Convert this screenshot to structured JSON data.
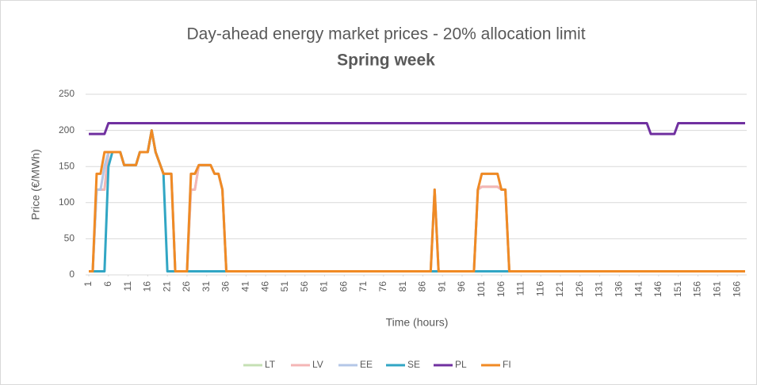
{
  "chart_data": {
    "type": "line",
    "title": "Day-ahead energy market prices - 20% allocation limit",
    "subtitle": "Spring week",
    "x_label": "Time (hours)",
    "y_label": "Price (€/MWh)",
    "x": [
      1,
      2,
      3,
      4,
      5,
      6,
      7,
      8,
      9,
      10,
      11,
      12,
      13,
      14,
      15,
      16,
      17,
      18,
      19,
      20,
      21,
      22,
      23,
      24,
      25,
      26,
      27,
      28,
      29,
      30,
      31,
      32,
      33,
      34,
      35,
      36,
      37,
      38,
      39,
      40,
      41,
      42,
      43,
      44,
      45,
      46,
      47,
      48,
      49,
      50,
      51,
      52,
      53,
      54,
      55,
      56,
      57,
      58,
      59,
      60,
      61,
      62,
      63,
      64,
      65,
      66,
      67,
      68,
      69,
      70,
      71,
      72,
      73,
      74,
      75,
      76,
      77,
      78,
      79,
      80,
      81,
      82,
      83,
      84,
      85,
      86,
      87,
      88,
      89,
      90,
      91,
      92,
      93,
      94,
      95,
      96,
      97,
      98,
      99,
      100,
      101,
      102,
      103,
      104,
      105,
      106,
      107,
      108,
      109,
      110,
      111,
      112,
      113,
      114,
      115,
      116,
      117,
      118,
      119,
      120,
      121,
      122,
      123,
      124,
      125,
      126,
      127,
      128,
      129,
      130,
      131,
      132,
      133,
      134,
      135,
      136,
      137,
      138,
      139,
      140,
      141,
      142,
      143,
      144,
      145,
      146,
      147,
      148,
      149,
      150,
      151,
      152,
      153,
      154,
      155,
      156,
      157,
      158,
      159,
      160,
      161,
      162,
      163,
      164,
      165,
      166,
      167,
      168
    ],
    "xlim": [
      1,
      168
    ],
    "xticks": [
      1,
      6,
      11,
      16,
      21,
      26,
      31,
      36,
      41,
      46,
      51,
      56,
      61,
      66,
      71,
      76,
      81,
      86,
      91,
      96,
      101,
      106,
      111,
      116,
      121,
      126,
      131,
      136,
      141,
      146,
      151,
      156,
      161,
      166
    ],
    "ylim": [
      0,
      250
    ],
    "yticks": [
      0,
      50,
      100,
      150,
      200,
      250
    ],
    "grid": true,
    "legend": "bottom",
    "series": [
      {
        "name": "LT",
        "color": "#c5e0b4",
        "values": [
          5,
          5,
          118,
          118,
          118,
          170,
          170,
          170,
          170,
          152,
          152,
          152,
          152,
          170,
          170,
          170,
          200,
          170,
          155,
          140,
          140,
          140,
          5,
          5,
          5,
          5,
          118,
          118,
          152,
          152,
          152,
          152,
          140,
          140,
          118,
          5,
          5,
          5,
          5,
          5,
          5,
          5,
          5,
          5,
          5,
          5,
          5,
          5,
          5,
          5,
          5,
          5,
          5,
          5,
          5,
          5,
          5,
          5,
          5,
          5,
          5,
          5,
          5,
          5,
          5,
          5,
          5,
          5,
          5,
          5,
          5,
          5,
          5,
          5,
          5,
          5,
          5,
          5,
          5,
          5,
          5,
          5,
          5,
          5,
          5,
          5,
          5,
          5,
          118,
          5,
          5,
          5,
          5,
          5,
          5,
          5,
          5,
          5,
          5,
          118,
          122,
          122,
          122,
          122,
          122,
          118,
          118,
          5,
          5,
          5,
          5,
          5,
          5,
          5,
          5,
          5,
          5,
          5,
          5,
          5,
          5,
          5,
          5,
          5,
          5,
          5,
          5,
          5,
          5,
          5,
          5,
          5,
          5,
          5,
          5,
          5,
          5,
          5,
          5,
          5,
          5,
          5,
          5,
          5,
          5,
          5,
          5,
          5,
          5,
          5,
          5,
          5,
          5,
          5,
          5,
          5,
          5,
          5,
          5,
          5,
          5,
          5,
          5,
          5,
          5,
          5,
          5,
          5
        ]
      },
      {
        "name": "LV",
        "color": "#f4b6b6",
        "values": [
          5,
          5,
          118,
          118,
          118,
          170,
          170,
          170,
          170,
          152,
          152,
          152,
          152,
          170,
          170,
          170,
          200,
          170,
          155,
          140,
          140,
          140,
          5,
          5,
          5,
          5,
          118,
          118,
          152,
          152,
          152,
          152,
          140,
          140,
          118,
          5,
          5,
          5,
          5,
          5,
          5,
          5,
          5,
          5,
          5,
          5,
          5,
          5,
          5,
          5,
          5,
          5,
          5,
          5,
          5,
          5,
          5,
          5,
          5,
          5,
          5,
          5,
          5,
          5,
          5,
          5,
          5,
          5,
          5,
          5,
          5,
          5,
          5,
          5,
          5,
          5,
          5,
          5,
          5,
          5,
          5,
          5,
          5,
          5,
          5,
          5,
          5,
          5,
          118,
          5,
          5,
          5,
          5,
          5,
          5,
          5,
          5,
          5,
          5,
          118,
          122,
          122,
          122,
          122,
          122,
          118,
          118,
          5,
          5,
          5,
          5,
          5,
          5,
          5,
          5,
          5,
          5,
          5,
          5,
          5,
          5,
          5,
          5,
          5,
          5,
          5,
          5,
          5,
          5,
          5,
          5,
          5,
          5,
          5,
          5,
          5,
          5,
          5,
          5,
          5,
          5,
          5,
          5,
          5,
          5,
          5,
          5,
          5,
          5,
          5,
          5,
          5,
          5,
          5,
          5,
          5,
          5,
          5,
          5,
          5,
          5,
          5,
          5,
          5,
          5,
          5,
          5,
          5
        ]
      },
      {
        "name": "EE",
        "color": "#b4c7e7",
        "values": [
          5,
          5,
          118,
          118,
          150,
          170,
          170,
          170,
          170,
          152,
          152,
          152,
          152,
          170,
          170,
          170,
          200,
          170,
          155,
          140,
          140,
          140,
          5,
          5,
          5,
          5,
          140,
          140,
          152,
          152,
          152,
          152,
          140,
          140,
          118,
          5,
          5,
          5,
          5,
          5,
          5,
          5,
          5,
          5,
          5,
          5,
          5,
          5,
          5,
          5,
          5,
          5,
          5,
          5,
          5,
          5,
          5,
          5,
          5,
          5,
          5,
          5,
          5,
          5,
          5,
          5,
          5,
          5,
          5,
          5,
          5,
          5,
          5,
          5,
          5,
          5,
          5,
          5,
          5,
          5,
          5,
          5,
          5,
          5,
          5,
          5,
          5,
          5,
          118,
          5,
          5,
          5,
          5,
          5,
          5,
          5,
          5,
          5,
          5,
          118,
          140,
          140,
          140,
          140,
          140,
          118,
          118,
          5,
          5,
          5,
          5,
          5,
          5,
          5,
          5,
          5,
          5,
          5,
          5,
          5,
          5,
          5,
          5,
          5,
          5,
          5,
          5,
          5,
          5,
          5,
          5,
          5,
          5,
          5,
          5,
          5,
          5,
          5,
          5,
          5,
          5,
          5,
          5,
          5,
          5,
          5,
          5,
          5,
          5,
          5,
          5,
          5,
          5,
          5,
          5,
          5,
          5,
          5,
          5,
          5,
          5,
          5,
          5,
          5,
          5,
          5,
          5,
          5
        ]
      },
      {
        "name": "SE",
        "color": "#31a6c4",
        "values": [
          5,
          5,
          5,
          5,
          5,
          150,
          170,
          170,
          170,
          152,
          152,
          152,
          152,
          170,
          170,
          170,
          200,
          170,
          155,
          140,
          5,
          5,
          5,
          5,
          5,
          5,
          5,
          5,
          5,
          5,
          5,
          5,
          5,
          5,
          5,
          5,
          5,
          5,
          5,
          5,
          5,
          5,
          5,
          5,
          5,
          5,
          5,
          5,
          5,
          5,
          5,
          5,
          5,
          5,
          5,
          5,
          5,
          5,
          5,
          5,
          5,
          5,
          5,
          5,
          5,
          5,
          5,
          5,
          5,
          5,
          5,
          5,
          5,
          5,
          5,
          5,
          5,
          5,
          5,
          5,
          5,
          5,
          5,
          5,
          5,
          5,
          5,
          5,
          5,
          5,
          5,
          5,
          5,
          5,
          5,
          5,
          5,
          5,
          5,
          5,
          5,
          5,
          5,
          5,
          5,
          5,
          5,
          5,
          5,
          5,
          5,
          5,
          5,
          5,
          5,
          5,
          5,
          5,
          5,
          5,
          5,
          5,
          5,
          5,
          5,
          5,
          5,
          5,
          5,
          5,
          5,
          5,
          5,
          5,
          5,
          5,
          5,
          5,
          5,
          5,
          5,
          5,
          5,
          5,
          5,
          5,
          5,
          5,
          5,
          5,
          5,
          5,
          5,
          5,
          5,
          5,
          5,
          5,
          5,
          5,
          5,
          5,
          5,
          5,
          5,
          5,
          5,
          5
        ]
      },
      {
        "name": "PL",
        "color": "#7030a0",
        "values": [
          195,
          195,
          195,
          195,
          195,
          210,
          210,
          210,
          210,
          210,
          210,
          210,
          210,
          210,
          210,
          210,
          210,
          210,
          210,
          210,
          210,
          210,
          210,
          210,
          210,
          210,
          210,
          210,
          210,
          210,
          210,
          210,
          210,
          210,
          210,
          210,
          210,
          210,
          210,
          210,
          210,
          210,
          210,
          210,
          210,
          210,
          210,
          210,
          210,
          210,
          210,
          210,
          210,
          210,
          210,
          210,
          210,
          210,
          210,
          210,
          210,
          210,
          210,
          210,
          210,
          210,
          210,
          210,
          210,
          210,
          210,
          210,
          210,
          210,
          210,
          210,
          210,
          210,
          210,
          210,
          210,
          210,
          210,
          210,
          210,
          210,
          210,
          210,
          210,
          210,
          210,
          210,
          210,
          210,
          210,
          210,
          210,
          210,
          210,
          210,
          210,
          210,
          210,
          210,
          210,
          210,
          210,
          210,
          210,
          210,
          210,
          210,
          210,
          210,
          210,
          210,
          210,
          210,
          210,
          210,
          210,
          210,
          210,
          210,
          210,
          210,
          210,
          210,
          210,
          210,
          210,
          210,
          210,
          210,
          210,
          210,
          210,
          210,
          210,
          210,
          210,
          210,
          210,
          195,
          195,
          195,
          195,
          195,
          195,
          195,
          210,
          210,
          210,
          210,
          210,
          210,
          210,
          210,
          210,
          210,
          210,
          210,
          210,
          210,
          210,
          210,
          210,
          210
        ]
      },
      {
        "name": "FI",
        "color": "#f08a24",
        "values": [
          5,
          5,
          140,
          140,
          170,
          170,
          170,
          170,
          170,
          152,
          152,
          152,
          152,
          170,
          170,
          170,
          200,
          170,
          155,
          140,
          140,
          140,
          5,
          5,
          5,
          5,
          140,
          140,
          152,
          152,
          152,
          152,
          140,
          140,
          118,
          5,
          5,
          5,
          5,
          5,
          5,
          5,
          5,
          5,
          5,
          5,
          5,
          5,
          5,
          5,
          5,
          5,
          5,
          5,
          5,
          5,
          5,
          5,
          5,
          5,
          5,
          5,
          5,
          5,
          5,
          5,
          5,
          5,
          5,
          5,
          5,
          5,
          5,
          5,
          5,
          5,
          5,
          5,
          5,
          5,
          5,
          5,
          5,
          5,
          5,
          5,
          5,
          5,
          118,
          5,
          5,
          5,
          5,
          5,
          5,
          5,
          5,
          5,
          5,
          118,
          140,
          140,
          140,
          140,
          140,
          118,
          118,
          5,
          5,
          5,
          5,
          5,
          5,
          5,
          5,
          5,
          5,
          5,
          5,
          5,
          5,
          5,
          5,
          5,
          5,
          5,
          5,
          5,
          5,
          5,
          5,
          5,
          5,
          5,
          5,
          5,
          5,
          5,
          5,
          5,
          5,
          5,
          5,
          5,
          5,
          5,
          5,
          5,
          5,
          5,
          5,
          5,
          5,
          5,
          5,
          5,
          5,
          5,
          5,
          5,
          5,
          5,
          5,
          5,
          5,
          5,
          5,
          5
        ]
      }
    ]
  }
}
